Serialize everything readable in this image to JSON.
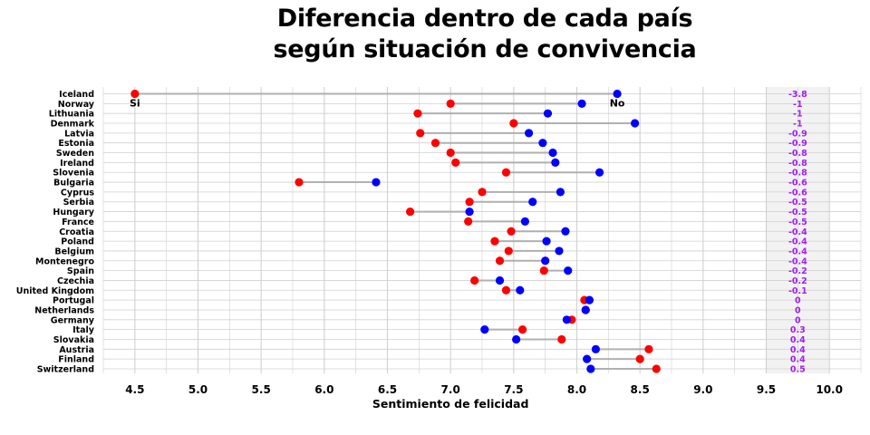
{
  "title_lines": [
    "Diferencia dentro de cada país",
    "según situación de convivencia"
  ],
  "chart_data": {
    "type": "dumbbell",
    "title": "Diferencia dentro de cada país según situación de convivencia",
    "xlabel": "Sentimiento de felicidad",
    "ylabel": "",
    "xlim": [
      4.25,
      10.25
    ],
    "xticks": [
      "4.5",
      "5.0",
      "5.5",
      "6.0",
      "6.5",
      "7.0",
      "7.5",
      "8.0",
      "8.5",
      "9.0",
      "9.5",
      "10.0"
    ],
    "grid": true,
    "colors": {
      "si": "#ff0000",
      "no": "#0000ff",
      "connector": "#b0b0b0",
      "diff": "#a020f0",
      "diff_panel": "#f2f2f2"
    },
    "series_labels": {
      "si": "Si",
      "no": "No"
    },
    "diff_panel_range": [
      9.5,
      10.0
    ],
    "rows": [
      {
        "country": "Iceland",
        "si": 4.5,
        "no": 8.32,
        "diff": "-3.8"
      },
      {
        "country": "Norway",
        "si": 7.0,
        "no": 8.04,
        "diff": "-1"
      },
      {
        "country": "Lithuania",
        "si": 6.74,
        "no": 7.77,
        "diff": "-1"
      },
      {
        "country": "Denmark",
        "si": 7.5,
        "no": 8.46,
        "diff": "-1"
      },
      {
        "country": "Latvia",
        "si": 6.76,
        "no": 7.62,
        "diff": "-0.9"
      },
      {
        "country": "Estonia",
        "si": 6.88,
        "no": 7.73,
        "diff": "-0.9"
      },
      {
        "country": "Sweden",
        "si": 7.0,
        "no": 7.81,
        "diff": "-0.8"
      },
      {
        "country": "Ireland",
        "si": 7.04,
        "no": 7.83,
        "diff": "-0.8"
      },
      {
        "country": "Slovenia",
        "si": 7.44,
        "no": 8.18,
        "diff": "-0.8"
      },
      {
        "country": "Bulgaria",
        "si": 5.8,
        "no": 6.41,
        "diff": "-0.6"
      },
      {
        "country": "Cyprus",
        "si": 7.25,
        "no": 7.87,
        "diff": "-0.6"
      },
      {
        "country": "Serbia",
        "si": 7.15,
        "no": 7.65,
        "diff": "-0.5"
      },
      {
        "country": "Hungary",
        "si": 6.68,
        "no": 7.15,
        "diff": "-0.5"
      },
      {
        "country": "France",
        "si": 7.14,
        "no": 7.59,
        "diff": "-0.5"
      },
      {
        "country": "Croatia",
        "si": 7.48,
        "no": 7.91,
        "diff": "-0.4"
      },
      {
        "country": "Poland",
        "si": 7.35,
        "no": 7.76,
        "diff": "-0.4"
      },
      {
        "country": "Belgium",
        "si": 7.46,
        "no": 7.86,
        "diff": "-0.4"
      },
      {
        "country": "Montenegro",
        "si": 7.39,
        "no": 7.75,
        "diff": "-0.4"
      },
      {
        "country": "Spain",
        "si": 7.74,
        "no": 7.93,
        "diff": "-0.2"
      },
      {
        "country": "Czechia",
        "si": 7.19,
        "no": 7.39,
        "diff": "-0.2"
      },
      {
        "country": "United Kingdom",
        "si": 7.44,
        "no": 7.55,
        "diff": "-0.1"
      },
      {
        "country": "Portugal",
        "si": 8.06,
        "no": 8.1,
        "diff": "0"
      },
      {
        "country": "Netherlands",
        "si": 8.07,
        "no": 8.07,
        "diff": "0"
      },
      {
        "country": "Germany",
        "si": 7.96,
        "no": 7.92,
        "diff": "0"
      },
      {
        "country": "Italy",
        "si": 7.57,
        "no": 7.27,
        "diff": "0.3"
      },
      {
        "country": "Slovakia",
        "si": 7.88,
        "no": 7.52,
        "diff": "0.4"
      },
      {
        "country": "Austria",
        "si": 8.57,
        "no": 8.15,
        "diff": "0.4"
      },
      {
        "country": "Finland",
        "si": 8.5,
        "no": 8.08,
        "diff": "0.4"
      },
      {
        "country": "Switzerland",
        "si": 8.63,
        "no": 8.11,
        "diff": "0.5"
      }
    ]
  }
}
